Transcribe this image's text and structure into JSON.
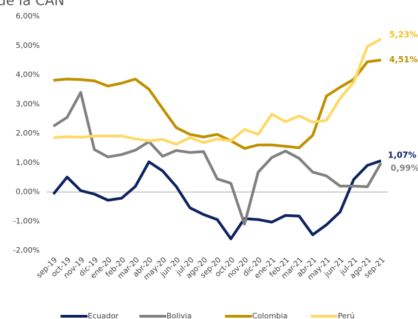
{
  "chart_data": {
    "type": "line",
    "title": "de la CAN",
    "categories": [
      "sep-19",
      "oct-19",
      "nov-19",
      "dic-19",
      "ene-20",
      "feb-20",
      "mar-20",
      "abr-20",
      "may-20",
      "jun-20",
      "jul-20",
      "ago-20",
      "sep-20",
      "oct-20",
      "nov-20",
      "dic-20",
      "ene-21",
      "feb-21",
      "mar-21",
      "abr-21",
      "may-21",
      "jun-21",
      "jul-21",
      "ago-21",
      "sep-21"
    ],
    "series": [
      {
        "name": "Ecuador",
        "color": "#0d2260",
        "values": [
          -0.07,
          0.51,
          0.05,
          -0.07,
          -0.28,
          -0.21,
          0.19,
          1.03,
          0.72,
          0.19,
          -0.54,
          -0.77,
          -0.94,
          -1.6,
          -0.91,
          -0.94,
          -1.03,
          -0.8,
          -0.82,
          -1.46,
          -1.12,
          -0.68,
          0.43,
          0.91,
          1.07
        ],
        "value_labels": [
          null,
          null,
          null,
          null,
          null,
          null,
          null,
          null,
          null,
          null,
          null,
          null,
          null,
          null,
          null,
          null,
          null,
          null,
          null,
          null,
          null,
          null,
          null,
          null,
          "1,07%"
        ]
      },
      {
        "name": "Bolivia",
        "color": "#808080",
        "values": [
          2.25,
          2.55,
          3.4,
          1.45,
          1.2,
          1.28,
          1.43,
          1.72,
          1.22,
          1.42,
          1.35,
          1.38,
          0.45,
          0.3,
          -1.1,
          0.68,
          1.18,
          1.4,
          1.15,
          0.68,
          0.55,
          0.2,
          0.2,
          0.18,
          0.99
        ],
        "value_labels": [
          null,
          null,
          null,
          null,
          null,
          null,
          null,
          null,
          null,
          null,
          null,
          null,
          null,
          null,
          null,
          null,
          null,
          null,
          null,
          null,
          null,
          null,
          null,
          null,
          "0,99%"
        ]
      },
      {
        "name": "Colombia",
        "color": "#bf9000",
        "values": [
          3.82,
          3.86,
          3.84,
          3.8,
          3.62,
          3.72,
          3.86,
          3.51,
          2.85,
          2.2,
          1.97,
          1.88,
          1.97,
          1.75,
          1.49,
          1.61,
          1.61,
          1.56,
          1.51,
          1.94,
          3.28,
          3.58,
          3.85,
          4.45,
          4.51
        ],
        "value_labels": [
          null,
          null,
          null,
          null,
          null,
          null,
          null,
          null,
          null,
          null,
          null,
          null,
          null,
          null,
          null,
          null,
          null,
          null,
          null,
          null,
          null,
          null,
          null,
          null,
          "4,51%"
        ]
      },
      {
        "name": "Perú",
        "color": "#ffd966",
        "values": [
          1.86,
          1.89,
          1.87,
          1.91,
          1.91,
          1.91,
          1.82,
          1.75,
          1.8,
          1.63,
          1.86,
          1.69,
          1.81,
          1.75,
          2.14,
          1.97,
          2.66,
          2.4,
          2.6,
          2.39,
          2.45,
          3.2,
          3.75,
          4.97,
          5.23
        ],
        "value_labels": [
          null,
          null,
          null,
          null,
          null,
          null,
          null,
          null,
          null,
          null,
          null,
          null,
          null,
          null,
          null,
          null,
          null,
          null,
          null,
          null,
          null,
          null,
          null,
          null,
          "5,23%"
        ]
      }
    ],
    "ylim": [
      -2,
      6
    ],
    "yticks": [
      {
        "value": -2,
        "label": "-2,00%"
      },
      {
        "value": -1,
        "label": "-1,00%"
      },
      {
        "value": 0,
        "label": "0,00%"
      },
      {
        "value": 1,
        "label": "1,00%"
      },
      {
        "value": 2,
        "label": "2,00%"
      },
      {
        "value": 3,
        "label": "3,00%"
      },
      {
        "value": 4,
        "label": "4,00%"
      },
      {
        "value": 5,
        "label": "5,00%"
      },
      {
        "value": 6,
        "label": "6,00%"
      }
    ],
    "legend": "bottom"
  }
}
